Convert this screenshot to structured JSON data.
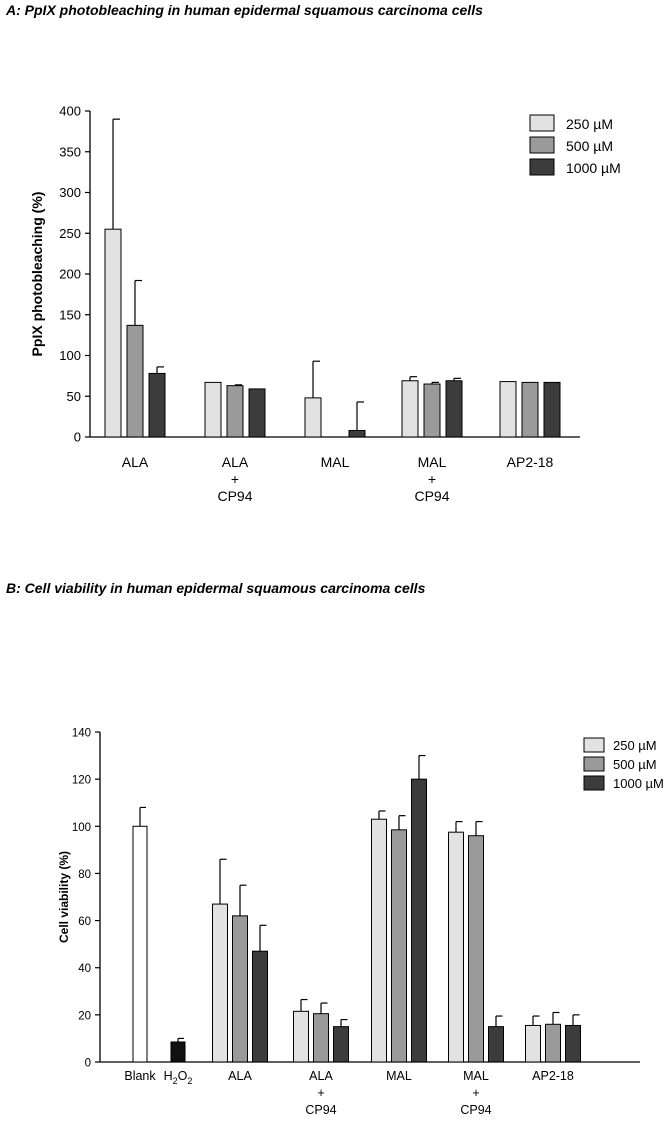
{
  "panels": {
    "a_title": "A: PpIX photobleaching in human epidermal squamous carcinoma cells",
    "b_title": "B: Cell viability in human epidermal squamous carcinoma cells"
  },
  "colors": {
    "light": "#e2e2e2",
    "mid": "#9a9a9a",
    "dark": "#3c3c3c",
    "blank": "#ffffff",
    "h2o2": "#111111"
  },
  "chart_data": [
    {
      "type": "bar",
      "title": "A: PpIX photobleaching in human epidermal squamous carcinoma cells",
      "ylabel": "PpIX photobleaching (%)",
      "xlabel": "",
      "ylim": [
        0,
        400
      ],
      "yticks": [
        "0",
        "50",
        "100",
        "150",
        "200",
        "250",
        "300",
        "350",
        "400"
      ],
      "categories": [
        {
          "line1": "ALA",
          "line2": "",
          "line3": ""
        },
        {
          "line1": "ALA",
          "line2": "+",
          "line3": "CP94"
        },
        {
          "line1": "MAL",
          "line2": "",
          "line3": ""
        },
        {
          "line1": "MAL",
          "line2": "+",
          "line3": "CP94"
        },
        {
          "line1": "AP2-18",
          "line2": "",
          "line3": ""
        }
      ],
      "series": [
        {
          "name": "250 µM",
          "color_key": "light",
          "values": [
            255,
            67,
            48,
            69,
            68
          ],
          "errors": [
            135,
            0,
            45,
            5,
            0
          ]
        },
        {
          "name": "500 µM",
          "color_key": "mid",
          "values": [
            137,
            63,
            0,
            65,
            67
          ],
          "errors": [
            55,
            1,
            0,
            2,
            0
          ]
        },
        {
          "name": "1000 µM",
          "color_key": "dark",
          "values": [
            78,
            59,
            8,
            69,
            67
          ],
          "errors": [
            8,
            0,
            35,
            3,
            0
          ]
        }
      ],
      "legend": "top-right"
    },
    {
      "type": "bar",
      "title": "B: Cell viability in human epidermal squamous carcinoma cells",
      "ylabel": "Cell viability (%)",
      "xlabel": "",
      "ylim": [
        0,
        140
      ],
      "yticks": [
        "0",
        "20",
        "40",
        "60",
        "80",
        "100",
        "120",
        "140"
      ],
      "controls": [
        {
          "label": "Blank",
          "color_key": "blank",
          "value": 100,
          "error": 8
        },
        {
          "label": "H2O2",
          "label_main": "H",
          "label_sub": "2",
          "label_main2": "O",
          "label_sub2": "2",
          "color_key": "h2o2",
          "value": 8.5,
          "error": 1.5
        }
      ],
      "categories": [
        {
          "line1": "ALA",
          "line2": "",
          "line3": ""
        },
        {
          "line1": "ALA",
          "line2": "+",
          "line3": "CP94"
        },
        {
          "line1": "MAL",
          "line2": "",
          "line3": ""
        },
        {
          "line1": "MAL",
          "line2": "+",
          "line3": "CP94"
        },
        {
          "line1": "AP2-18",
          "line2": "",
          "line3": ""
        }
      ],
      "series": [
        {
          "name": "250 µM",
          "color_key": "light",
          "values": [
            67,
            21.5,
            103,
            97.5,
            15.5
          ],
          "errors": [
            19,
            5,
            3.5,
            4.5,
            4
          ]
        },
        {
          "name": "500 µM",
          "color_key": "mid",
          "values": [
            62,
            20.5,
            98.5,
            96,
            16
          ],
          "errors": [
            13,
            4.5,
            6,
            6,
            5
          ]
        },
        {
          "name": "1000 µM",
          "color_key": "dark",
          "values": [
            47,
            15,
            120,
            15,
            15.5
          ],
          "errors": [
            11,
            3,
            10,
            4.5,
            4.5
          ]
        }
      ],
      "legend": "top-right"
    }
  ]
}
